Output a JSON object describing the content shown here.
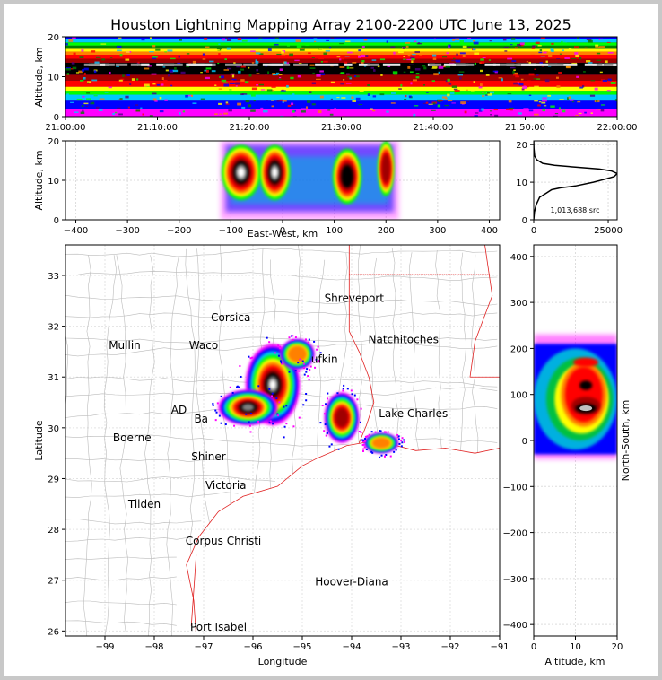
{
  "title": "Houston Lightning Mapping Array 2100-2200 UTC June 13, 2025",
  "chart_data": [
    {
      "type": "heatmap",
      "panel": "time-altitude",
      "ylabel": "Altitude, km",
      "ylim": [
        0,
        20
      ],
      "yticks": [
        "0",
        "10",
        "20"
      ],
      "xticks": [
        "21:00:00",
        "21:10:00",
        "21:20:00",
        "21:30:00",
        "21:40:00",
        "21:50:00",
        "22:00:00"
      ],
      "density_core_altitude_km": [
        10,
        16
      ],
      "peak_altitude_km": 13
    },
    {
      "type": "heatmap",
      "panel": "east-west-altitude",
      "xlabel": "East-West, km",
      "ylabel": "Altitude, km",
      "xlim": [
        -420,
        420
      ],
      "ylim": [
        0,
        20
      ],
      "xticks": [
        "−400",
        "−300",
        "−200",
        "−100",
        "0",
        "100",
        "200",
        "300",
        "400"
      ],
      "yticks": [
        "0",
        "10",
        "20"
      ],
      "cells": [
        {
          "x": -80,
          "z": 12,
          "rx": 38,
          "level": 1.0
        },
        {
          "x": -15,
          "z": 12,
          "rx": 30,
          "level": 0.95
        },
        {
          "x": 125,
          "z": 11,
          "rx": 28,
          "level": 0.8
        },
        {
          "x": 200,
          "z": 13,
          "rx": 16,
          "level": 0.6
        }
      ]
    },
    {
      "type": "line",
      "panel": "altitude-histogram",
      "annotation": "1,013,688 src",
      "xlim": [
        0,
        28000
      ],
      "ylim": [
        0,
        21
      ],
      "xticks": [
        "0",
        "25000"
      ],
      "yticks": [
        "0",
        "10",
        "20"
      ],
      "x": [
        0,
        200,
        800,
        2000,
        4000,
        6000,
        9000,
        14000,
        20000,
        24000,
        27000,
        28000,
        26000,
        22000,
        14000,
        7000,
        3000,
        1000,
        300,
        50,
        0
      ],
      "y": [
        0,
        2,
        4,
        6,
        7,
        8,
        8.5,
        9,
        10,
        10.8,
        11.5,
        12.3,
        13,
        13.5,
        14,
        14.5,
        15,
        16,
        17,
        19,
        21
      ]
    },
    {
      "type": "scatter",
      "panel": "plan-view-map",
      "xlabel": "Longitude",
      "ylabel": "Latitude",
      "xlim": [
        -99.8,
        -91
      ],
      "ylim": [
        25.9,
        33.6
      ],
      "xticks": [
        "−99",
        "−98",
        "−97",
        "−96",
        "−95",
        "−94",
        "−93",
        "−92",
        "−91"
      ],
      "yticks": [
        "26",
        "27",
        "28",
        "29",
        "30",
        "31",
        "32",
        "33"
      ],
      "cities": [
        {
          "name": "Shreveport",
          "lon": -93.95,
          "lat": 32.55,
          "color": "#000000"
        },
        {
          "name": "Corsica",
          "lon": -96.45,
          "lat": 32.17,
          "color": "#000000"
        },
        {
          "name": "Mullin",
          "lon": -98.6,
          "lat": 31.62,
          "color": "#e8874a"
        },
        {
          "name": "Waco",
          "lon": -97.0,
          "lat": 31.62,
          "color": "#000000"
        },
        {
          "name": "Natchitoches",
          "lon": -92.95,
          "lat": 31.74,
          "color": "#000000"
        },
        {
          "name": "ufkin",
          "lon": -94.55,
          "lat": 31.35,
          "color": "#000000"
        },
        {
          "name": "AD",
          "lon": -97.5,
          "lat": 30.35,
          "color": "#e8874a"
        },
        {
          "name": "Ba",
          "lon": -97.05,
          "lat": 30.17,
          "color": "#000000"
        },
        {
          "name": "Lake Charles",
          "lon": -92.75,
          "lat": 30.28,
          "color": "#000000"
        },
        {
          "name": "Boerne",
          "lon": -98.45,
          "lat": 29.8,
          "color": "#000000"
        },
        {
          "name": "Shiner",
          "lon": -96.9,
          "lat": 29.43,
          "color": "#000000"
        },
        {
          "name": "Victoria",
          "lon": -96.55,
          "lat": 28.87,
          "color": "#000000"
        },
        {
          "name": "Tilden",
          "lon": -98.2,
          "lat": 28.5,
          "color": "#000000"
        },
        {
          "name": "Corpus Christi",
          "lon": -96.6,
          "lat": 27.77,
          "color": "#000000"
        },
        {
          "name": "Hoover-Diana",
          "lon": -94.0,
          "lat": 26.97,
          "color": "#0000dd"
        },
        {
          "name": "Port Isabel",
          "lon": -96.7,
          "lat": 26.08,
          "color": "#000000"
        }
      ],
      "storm_cells": [
        {
          "lon": -95.6,
          "lat": 30.85,
          "rx": 0.55,
          "ry": 0.8,
          "level": 1.0
        },
        {
          "lon": -96.1,
          "lat": 30.4,
          "rx": 0.6,
          "ry": 0.35,
          "level": 0.9
        },
        {
          "lon": -95.1,
          "lat": 31.45,
          "rx": 0.35,
          "ry": 0.3,
          "level": 0.5
        },
        {
          "lon": -94.2,
          "lat": 30.2,
          "rx": 0.35,
          "ry": 0.5,
          "level": 0.75
        },
        {
          "lon": -93.4,
          "lat": 29.7,
          "rx": 0.35,
          "ry": 0.2,
          "level": 0.55
        }
      ]
    },
    {
      "type": "heatmap",
      "panel": "altitude-north-south",
      "xlabel": "Altitude, km",
      "ylabel": "North-South, km",
      "xlim": [
        0,
        20
      ],
      "ylim": [
        -425,
        425
      ],
      "xticks": [
        "0",
        "10",
        "20"
      ],
      "yticks": [
        "−400",
        "−300",
        "−200",
        "−100",
        "0",
        "100",
        "200",
        "300",
        "400"
      ]
    }
  ],
  "colors": {
    "scale": [
      "#4b0082",
      "#ff00ff",
      "#0000ff",
      "#00c8ff",
      "#00ff00",
      "#008000",
      "#ffff00",
      "#ff8000",
      "#ff0000",
      "#a00000",
      "#000000",
      "#808080",
      "#ffffff"
    ],
    "state_border": "#e02020",
    "county_border": "#bbbbbb"
  }
}
